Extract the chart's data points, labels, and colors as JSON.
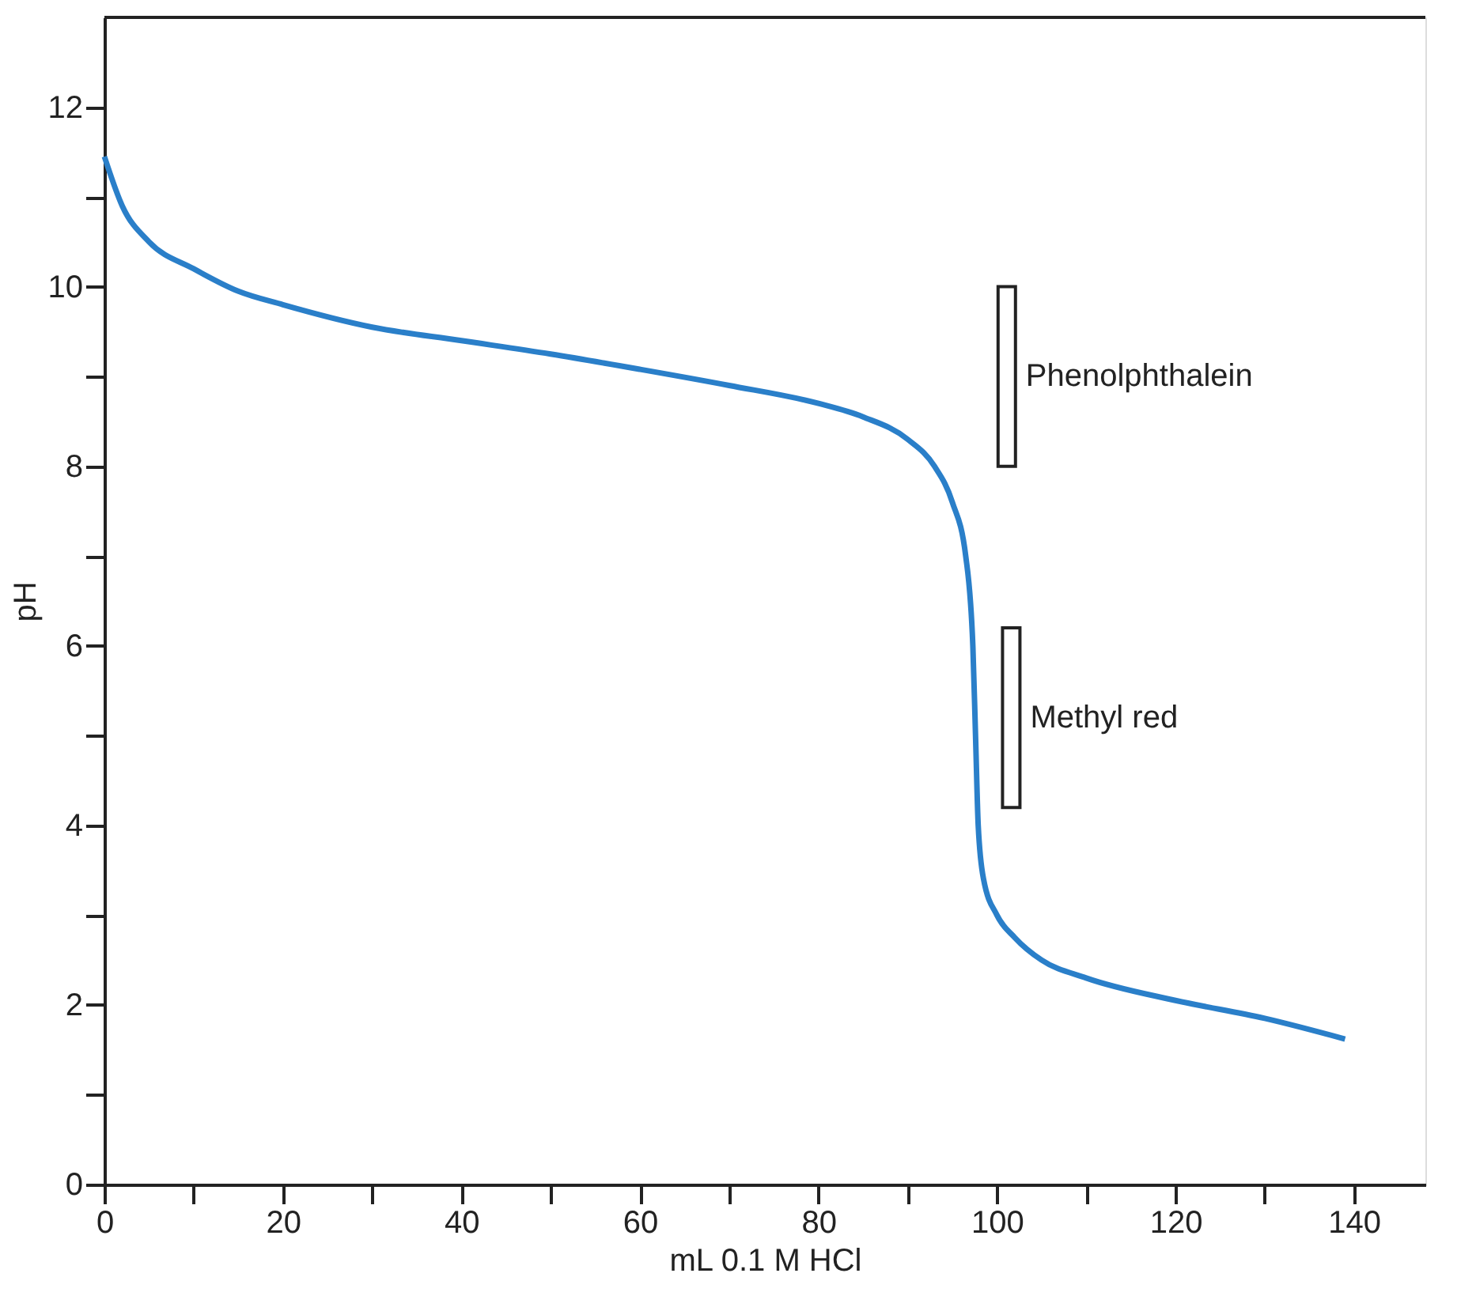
{
  "chart_data": {
    "type": "line",
    "xlabel": "mL 0.1 M HCl",
    "ylabel": "pH",
    "xlim": [
      0,
      148
    ],
    "ylim": [
      0,
      13
    ],
    "xticks": [
      0,
      {
        "value": 10,
        "label": null
      },
      20,
      {
        "value": 30,
        "label": null
      },
      40,
      {
        "value": 50,
        "label": null
      },
      60,
      {
        "value": 70,
        "label": null
      },
      80,
      {
        "value": 90,
        "label": null
      },
      100,
      {
        "value": 110,
        "label": null
      },
      120,
      {
        "value": 130,
        "label": null
      },
      140
    ],
    "yticks": [
      0,
      {
        "value": 1,
        "label": null
      },
      2,
      {
        "value": 3,
        "label": null
      },
      4,
      {
        "value": 5,
        "label": null
      },
      6,
      {
        "value": 7,
        "label": null
      },
      8,
      {
        "value": 9,
        "label": null
      },
      10,
      {
        "value": 11,
        "label": null
      },
      12
    ],
    "grid": false,
    "legend": false,
    "marker": "none",
    "line_style": "solid",
    "series": [
      {
        "color": "#2a7fc9",
        "x": [
          0,
          2,
          5,
          10,
          15,
          20,
          30,
          40,
          50,
          60,
          70,
          80,
          85,
          90,
          93,
          95,
          96.5,
          97.3,
          97.6,
          97.9,
          98.5,
          100,
          102,
          105,
          110,
          120,
          130,
          139
        ],
        "values": [
          11.45,
          10.9,
          10.5,
          10.2,
          9.95,
          9.8,
          9.55,
          9.4,
          9.25,
          9.08,
          8.9,
          8.7,
          8.55,
          8.3,
          8.0,
          7.6,
          7.0,
          6.0,
          5.0,
          4.0,
          3.4,
          3.0,
          2.75,
          2.5,
          2.3,
          2.05,
          1.85,
          1.62
        ]
      },
      {
        "type": "bar",
        "name": "Phenolphthalein",
        "color": "#ffffff",
        "x": [
          101.1
        ],
        "base": [
          8.0
        ],
        "values": [
          2.0
        ]
      },
      {
        "type": "bar",
        "name": "Methyl red",
        "color": "#ffffff",
        "x": [
          101.6
        ],
        "base": [
          4.2
        ],
        "values": [
          2.0
        ]
      }
    ]
  }
}
